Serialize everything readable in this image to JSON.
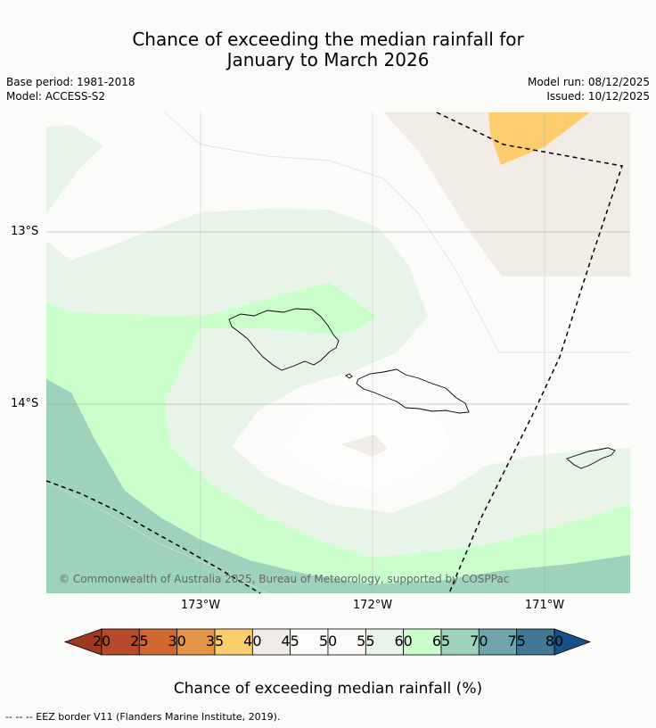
{
  "title_line1": "Chance of exceeding the median rainfall for",
  "title_line2": "January to March 2026",
  "base_period": "Base period: 1981-2018",
  "model": "Model: ACCESS-S2",
  "model_run": "Model run: 08/12/2025",
  "issued": "Issued: 10/12/2025",
  "lat_labels": [
    "13°S",
    "14°S"
  ],
  "lon_labels": [
    "173°W",
    "172°W",
    "171°W"
  ],
  "copyright": "© Commonwealth of Australia 2025, Bureau of Meteorology, supported by COSPPac",
  "colorbar": {
    "ticks": [
      "20",
      "25",
      "30",
      "35",
      "40",
      "45",
      "50",
      "55",
      "60",
      "65",
      "70",
      "75",
      "80"
    ],
    "colors": [
      "#9e3a20",
      "#b54b28",
      "#d06731",
      "#e39446",
      "#fdcc6c",
      "#f2ece6",
      "#fdfdfc",
      "#fbfcfa",
      "#e9f4e8",
      "#caffcc",
      "#9dd2bc",
      "#6ea6aa",
      "#427896",
      "#16518c"
    ],
    "label": "Chance of exceeding median rainfall (%)"
  },
  "map_colors": {
    "bin_40_45": "#f2ece6",
    "bin_35_40": "#fdcc6c",
    "bin_55_60": "#e9f4e8",
    "bin_60_65": "#caffcc",
    "bin_65_70": "#9dd2bc"
  },
  "footnote": "-- -- -- EEZ border V11 (Flanders Marine Institute, 2019)."
}
